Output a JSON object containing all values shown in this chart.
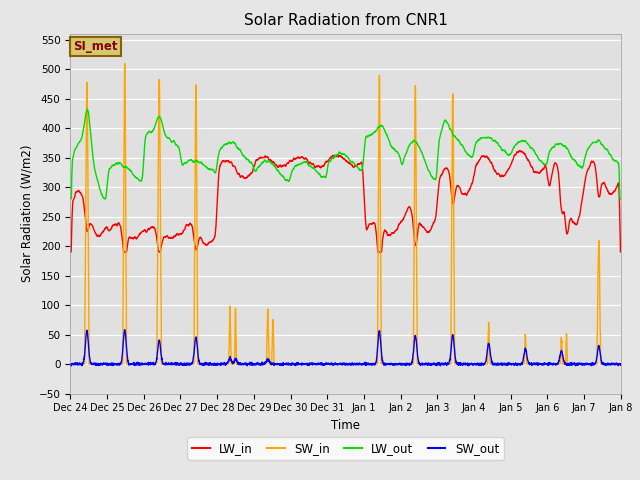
{
  "title": "Solar Radiation from CNR1",
  "xlabel": "Time",
  "ylabel": "Solar Radiation (W/m2)",
  "annotation": "SI_met",
  "ylim": [
    -50,
    560
  ],
  "yticks": [
    -50,
    0,
    50,
    100,
    150,
    200,
    250,
    300,
    350,
    400,
    450,
    500,
    550
  ],
  "line_colors": {
    "LW_in": "#ff0000",
    "SW_in": "#ffa500",
    "LW_out": "#00dd00",
    "SW_out": "#0000ff"
  },
  "x_tick_labels": [
    "Dec 24",
    "Dec 25",
    "Dec 26",
    "Dec 27",
    "Dec 28",
    "Dec 29",
    "Dec 30",
    "Dec 31",
    "Jan 1",
    "Jan 2",
    "Jan 3",
    "Jan 4",
    "Jan 5",
    "Jan 6",
    "Jan 7",
    "Jan 8"
  ],
  "num_points": 3000
}
